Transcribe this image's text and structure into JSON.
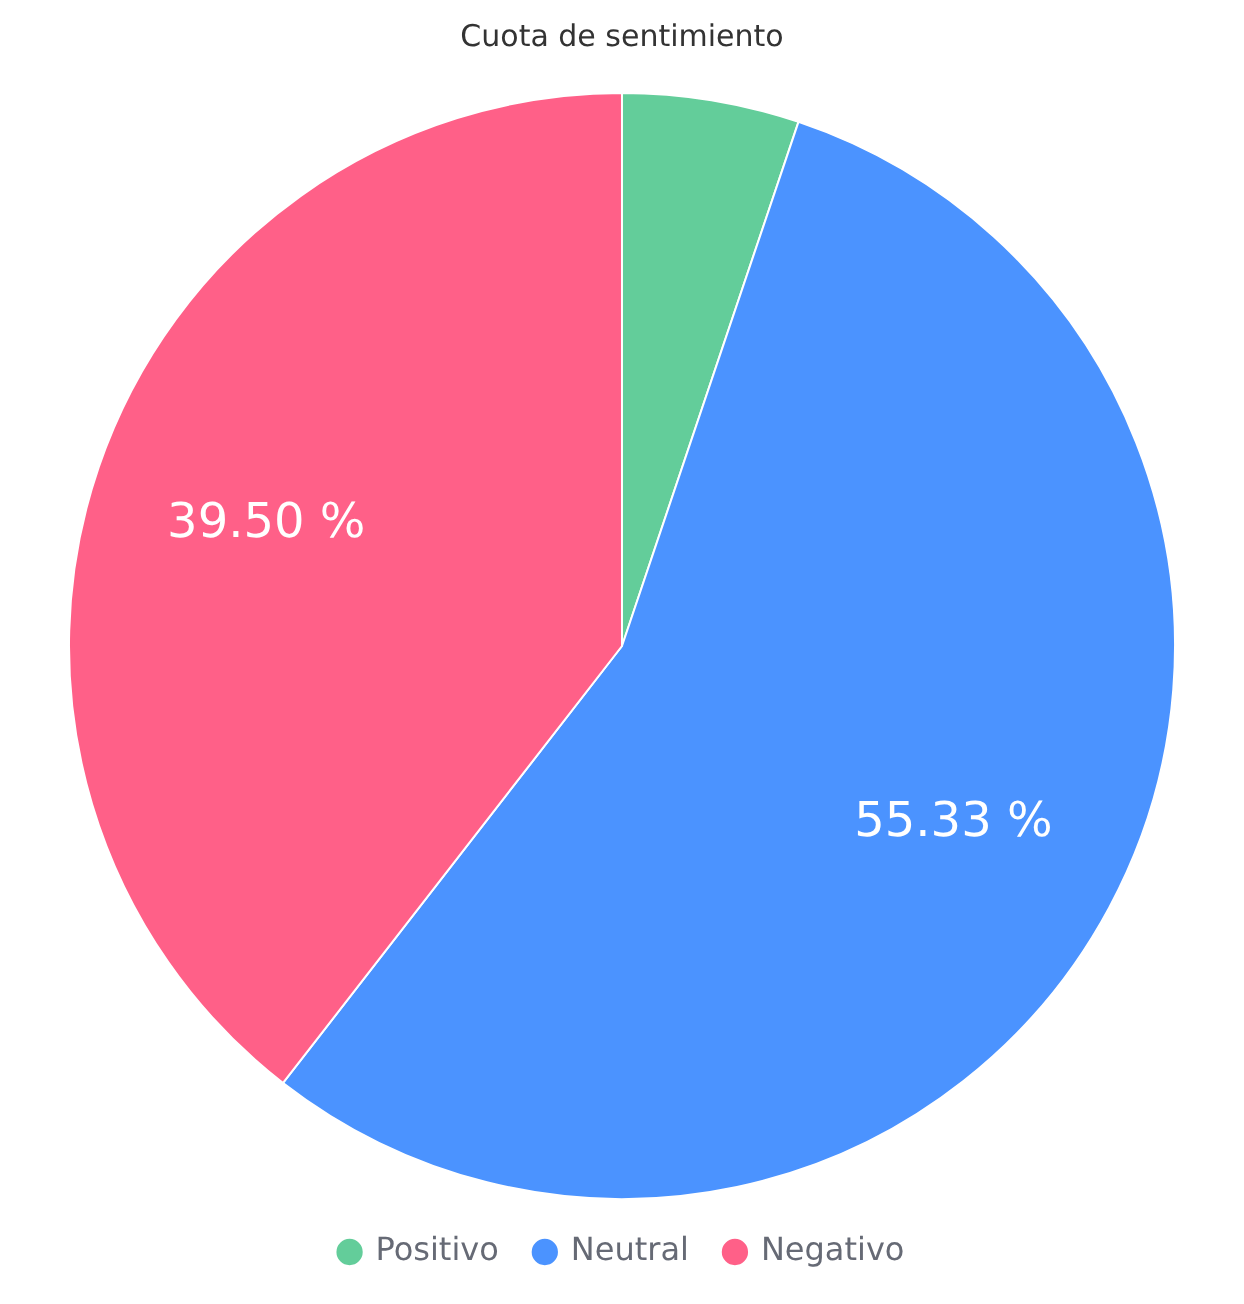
{
  "chart_data": {
    "type": "pie",
    "title": "Cuota de sentimiento",
    "categories": [
      "Positivo",
      "Neutral",
      "Negativo"
    ],
    "values": [
      5.17,
      55.33,
      39.5
    ],
    "colors": [
      "#63cd9a",
      "#4b93ff",
      "#ff6088"
    ],
    "value_labels": [
      null,
      "55.33 %",
      "39.50 %"
    ],
    "legend": "bottom"
  }
}
